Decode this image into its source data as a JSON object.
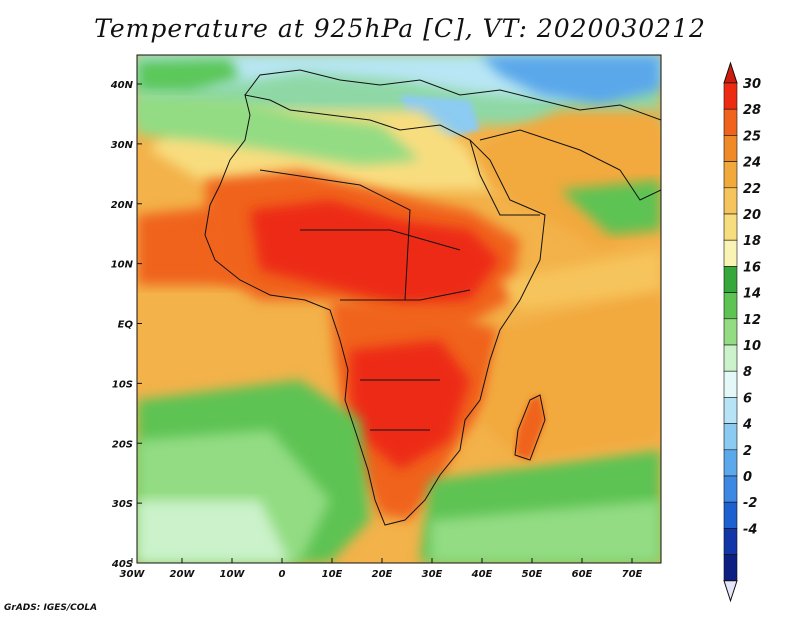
{
  "title": "Temperature at 925hPa [C], VT: 2020030212",
  "credit": "GrADS: IGES/COLA",
  "map": {
    "lon_ticks": [
      "30W",
      "20W",
      "10W",
      "0",
      "10E",
      "20E",
      "30E",
      "40E",
      "50E",
      "60E",
      "70E"
    ],
    "lat_ticks": [
      "40N",
      "30N",
      "20N",
      "10N",
      "EQ",
      "10S",
      "20S",
      "30S",
      "40S"
    ]
  },
  "colorbar": {
    "labels": [
      "30",
      "28",
      "25",
      "24",
      "22",
      "20",
      "18",
      "16",
      "14",
      "12",
      "10",
      "8",
      "6",
      "4",
      "2",
      "0",
      "-2",
      "-4"
    ],
    "colors": [
      "#ed2b13",
      "#f0631c",
      "#f08a27",
      "#f2a93c",
      "#f6c45c",
      "#f8dd7f",
      "#f9f4b4",
      "#36a83a",
      "#5dc352",
      "#93dc83",
      "#cbf2ca",
      "#e4f8f8",
      "#b6e4f6",
      "#8bcbf2",
      "#5ba9ec",
      "#3d88e2",
      "#1d60cf",
      "#1136a8",
      "#0d1f82"
    ],
    "top_color": "#d01c0c",
    "bottom_color": "#e6e6fa"
  }
}
